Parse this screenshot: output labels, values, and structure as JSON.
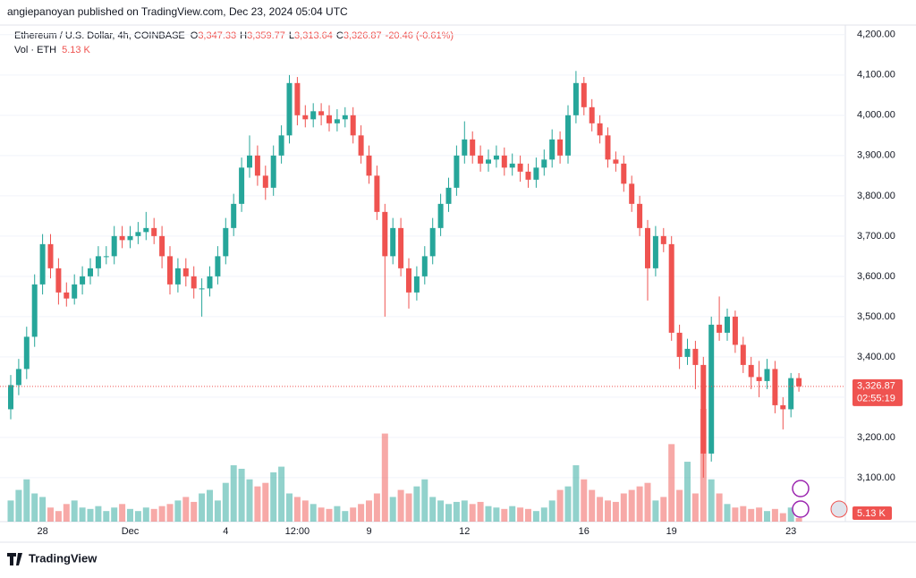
{
  "header": {
    "publisher": "angiepanoyan published on TradingView.com, Dec 23, 2024 05:04 UTC"
  },
  "footer": {
    "brand": "TradingView"
  },
  "chart_data": {
    "type": "candlestick",
    "title": "Ethereum / U.S. Dollar, 4h, COINBASE",
    "legend": {
      "open_prefix": "O",
      "open": "3,347.33",
      "high_prefix": "H",
      "high": "3,359.77",
      "low_prefix": "L",
      "low": "3,313.64",
      "close_prefix": "C",
      "close": "3,326.87",
      "change": "-20.46 (-0.61%)"
    },
    "volume_title": "Vol · ETH",
    "volume_value": "5.13 K",
    "up_color": "#26a69a",
    "down_color": "#ef5350",
    "categories": [
      null,
      null,
      null,
      null,
      "28",
      null,
      null,
      null,
      null,
      null,
      null,
      null,
      null,
      null,
      null,
      "Dec",
      null,
      null,
      null,
      null,
      null,
      null,
      null,
      null,
      null,
      null,
      null,
      "4",
      null,
      null,
      null,
      null,
      null,
      null,
      null,
      null,
      "12:00",
      null,
      null,
      null,
      null,
      null,
      null,
      null,
      null,
      "9",
      null,
      null,
      null,
      null,
      null,
      null,
      null,
      null,
      null,
      null,
      null,
      "12",
      null,
      null,
      null,
      null,
      null,
      null,
      null,
      null,
      null,
      null,
      null,
      null,
      null,
      null,
      "16",
      null,
      null,
      null,
      null,
      null,
      null,
      null,
      null,
      null,
      null,
      "19",
      null,
      null,
      null,
      null,
      null,
      null,
      null,
      null,
      null,
      null,
      null,
      null,
      null,
      null,
      "23",
      null
    ],
    "open": [
      3270,
      3330,
      3370,
      3450,
      3580,
      3680,
      3620,
      3560,
      3545,
      3580,
      3600,
      3620,
      3650,
      3650,
      3700,
      3690,
      3700,
      3710,
      3720,
      3700,
      3650,
      3580,
      3620,
      3600,
      3570,
      3570,
      3600,
      3650,
      3720,
      3780,
      3870,
      3900,
      3850,
      3820,
      3900,
      3950,
      4080,
      4000,
      3990,
      4010,
      4000,
      3980,
      3990,
      4000,
      3950,
      3900,
      3850,
      3760,
      3650,
      3720,
      3620,
      3560,
      3600,
      3650,
      3720,
      3780,
      3820,
      3900,
      3940,
      3900,
      3880,
      3890,
      3900,
      3870,
      3880,
      3860,
      3840,
      3870,
      3890,
      3940,
      3900,
      4000,
      4080,
      4020,
      3980,
      3950,
      3890,
      3880,
      3830,
      3780,
      3720,
      3620,
      3700,
      3680,
      3460,
      3400,
      3420,
      3380,
      3160,
      3480,
      3460,
      3500,
      3430,
      3380,
      3350,
      3340,
      3370,
      3280,
      3270,
      3347.33
    ],
    "high": [
      3355,
      3395,
      3475,
      3605,
      3705,
      3705,
      3645,
      3585,
      3605,
      3625,
      3645,
      3675,
      3675,
      3725,
      3725,
      3725,
      3735,
      3760,
      3745,
      3725,
      3675,
      3645,
      3645,
      3625,
      3595,
      3625,
      3675,
      3745,
      3805,
      3895,
      3950,
      3925,
      3875,
      3925,
      3975,
      4100,
      4095,
      4025,
      4030,
      4030,
      4025,
      4015,
      4020,
      4020,
      3975,
      3925,
      3875,
      3780,
      3745,
      3745,
      3645,
      3625,
      3675,
      3745,
      3805,
      3845,
      3925,
      3985,
      3960,
      3925,
      3915,
      3925,
      3920,
      3905,
      3900,
      3880,
      3895,
      3915,
      3965,
      3960,
      4025,
      4110,
      4095,
      4040,
      4000,
      3970,
      3910,
      3900,
      3850,
      3800,
      3740,
      3725,
      3720,
      3700,
      3480,
      3445,
      3440,
      3400,
      3500,
      3550,
      3520,
      3515,
      3450,
      3400,
      3390,
      3395,
      3390,
      3300,
      3360,
      3359.77
    ],
    "low": [
      3245,
      3305,
      3345,
      3425,
      3555,
      3595,
      3530,
      3525,
      3530,
      3555,
      3580,
      3600,
      3630,
      3630,
      3670,
      3670,
      3680,
      3690,
      3680,
      3620,
      3555,
      3560,
      3575,
      3545,
      3500,
      3550,
      3580,
      3630,
      3700,
      3760,
      3845,
      3825,
      3790,
      3800,
      3880,
      3930,
      3975,
      3970,
      3970,
      3975,
      3960,
      3960,
      3970,
      3930,
      3880,
      3830,
      3740,
      3500,
      3630,
      3600,
      3520,
      3540,
      3580,
      3630,
      3700,
      3760,
      3800,
      3880,
      3880,
      3860,
      3860,
      3870,
      3850,
      3850,
      3835,
      3820,
      3820,
      3850,
      3870,
      3880,
      3880,
      3980,
      4000,
      3960,
      3930,
      3870,
      3860,
      3810,
      3760,
      3700,
      3540,
      3600,
      3660,
      3440,
      3370,
      3380,
      3320,
      3100,
      3140,
      3440,
      3440,
      3410,
      3360,
      3320,
      3300,
      3320,
      3260,
      3220,
      3250,
      3313.64
    ],
    "close": [
      3330,
      3370,
      3450,
      3580,
      3680,
      3620,
      3560,
      3545,
      3580,
      3600,
      3620,
      3650,
      3650,
      3700,
      3690,
      3700,
      3710,
      3720,
      3700,
      3650,
      3580,
      3620,
      3600,
      3570,
      3570,
      3600,
      3650,
      3720,
      3780,
      3870,
      3900,
      3850,
      3820,
      3900,
      3950,
      4080,
      4000,
      3990,
      4010,
      4000,
      3980,
      3990,
      4000,
      3950,
      3900,
      3850,
      3760,
      3650,
      3720,
      3620,
      3560,
      3600,
      3650,
      3720,
      3780,
      3820,
      3900,
      3940,
      3900,
      3880,
      3890,
      3900,
      3870,
      3880,
      3860,
      3840,
      3870,
      3890,
      3940,
      3900,
      4000,
      4080,
      4020,
      3980,
      3950,
      3890,
      3880,
      3830,
      3780,
      3720,
      3620,
      3700,
      3680,
      3460,
      3400,
      3420,
      3380,
      3160,
      3480,
      3460,
      3500,
      3430,
      3380,
      3350,
      3340,
      3370,
      3280,
      3270,
      3347.33,
      3326.87
    ],
    "volume": [
      30,
      45,
      60,
      40,
      35,
      20,
      15,
      25,
      30,
      20,
      18,
      22,
      15,
      20,
      25,
      18,
      15,
      20,
      18,
      22,
      25,
      30,
      35,
      28,
      40,
      45,
      30,
      55,
      80,
      75,
      60,
      50,
      55,
      70,
      78,
      40,
      35,
      30,
      25,
      20,
      18,
      22,
      15,
      20,
      25,
      30,
      40,
      125,
      35,
      45,
      40,
      50,
      60,
      35,
      30,
      25,
      28,
      30,
      25,
      28,
      22,
      20,
      18,
      22,
      20,
      18,
      15,
      20,
      30,
      45,
      50,
      80,
      60,
      45,
      35,
      30,
      28,
      40,
      45,
      50,
      55,
      30,
      35,
      110,
      45,
      85,
      40,
      160,
      60,
      40,
      25,
      20,
      22,
      18,
      20,
      15,
      18,
      12,
      20,
      5.13
    ],
    "ylim": [
      2991,
      4224
    ],
    "yticks": [
      {
        "value": 3100,
        "label": "3,100.00"
      },
      {
        "value": 3200,
        "label": "3,200.00"
      },
      {
        "value": 3300,
        "label": "3,300.00"
      },
      {
        "value": 3400,
        "label": "3,400.00"
      },
      {
        "value": 3500,
        "label": "3,500.00"
      },
      {
        "value": 3600,
        "label": "3,600.00"
      },
      {
        "value": 3700,
        "label": "3,700.00"
      },
      {
        "value": 3800,
        "label": "3,800.00"
      },
      {
        "value": 3900,
        "label": "3,900.00"
      },
      {
        "value": 4000,
        "label": "4,000.00"
      },
      {
        "value": 4100,
        "label": "4,100.00"
      },
      {
        "value": 4200,
        "label": "4,200.00"
      }
    ],
    "last_price": {
      "value": 3326.87,
      "label": "3,326.87"
    },
    "countdown": "02:55:19"
  }
}
